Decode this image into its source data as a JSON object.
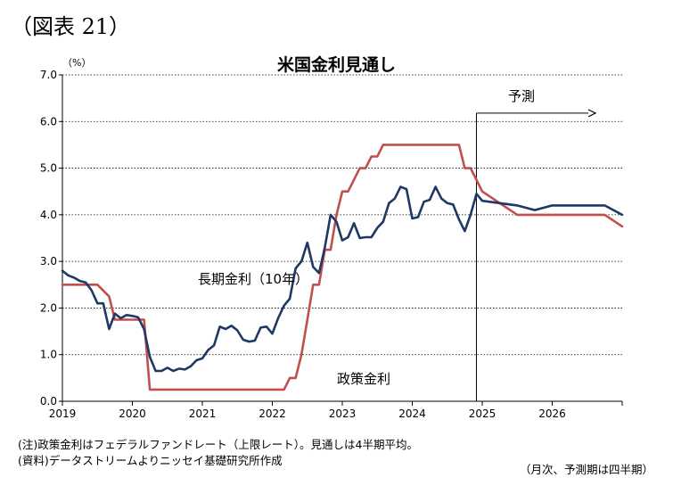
{
  "figure_label": "（図表 21）",
  "chart_data": {
    "type": "line",
    "title": "米国金利見通し",
    "ylabel": "（%）",
    "ylim": [
      0,
      7
    ],
    "yticks": [
      "0.0",
      "1.0",
      "2.0",
      "3.0",
      "4.0",
      "5.0",
      "6.0",
      "7.0"
    ],
    "xlim": [
      2019,
      2027
    ],
    "xticks": [
      "2019",
      "2020",
      "2021",
      "2022",
      "2023",
      "2024",
      "2025",
      "2026"
    ],
    "grid": true,
    "forecast_start": 2024.917,
    "forecast_label": "予測",
    "series": [
      {
        "name": "長期金利（10年）",
        "color": "#1f3864",
        "points": [
          [
            2019.0,
            2.8
          ],
          [
            2019.083,
            2.7
          ],
          [
            2019.167,
            2.65
          ],
          [
            2019.25,
            2.58
          ],
          [
            2019.333,
            2.55
          ],
          [
            2019.417,
            2.38
          ],
          [
            2019.5,
            2.1
          ],
          [
            2019.583,
            2.1
          ],
          [
            2019.667,
            1.55
          ],
          [
            2019.75,
            1.88
          ],
          [
            2019.833,
            1.78
          ],
          [
            2019.917,
            1.85
          ],
          [
            2020.0,
            1.83
          ],
          [
            2020.083,
            1.8
          ],
          [
            2020.167,
            1.55
          ],
          [
            2020.25,
            0.95
          ],
          [
            2020.333,
            0.65
          ],
          [
            2020.417,
            0.65
          ],
          [
            2020.5,
            0.72
          ],
          [
            2020.583,
            0.65
          ],
          [
            2020.667,
            0.7
          ],
          [
            2020.75,
            0.68
          ],
          [
            2020.833,
            0.75
          ],
          [
            2020.917,
            0.88
          ],
          [
            2021.0,
            0.92
          ],
          [
            2021.083,
            1.1
          ],
          [
            2021.167,
            1.2
          ],
          [
            2021.25,
            1.6
          ],
          [
            2021.333,
            1.55
          ],
          [
            2021.417,
            1.62
          ],
          [
            2021.5,
            1.52
          ],
          [
            2021.583,
            1.32
          ],
          [
            2021.667,
            1.28
          ],
          [
            2021.75,
            1.3
          ],
          [
            2021.833,
            1.58
          ],
          [
            2021.917,
            1.6
          ],
          [
            2022.0,
            1.45
          ],
          [
            2022.083,
            1.78
          ],
          [
            2022.167,
            2.05
          ],
          [
            2022.25,
            2.2
          ],
          [
            2022.333,
            2.85
          ],
          [
            2022.417,
            3.0
          ],
          [
            2022.5,
            3.4
          ],
          [
            2022.583,
            2.88
          ],
          [
            2022.667,
            2.75
          ],
          [
            2022.75,
            3.3
          ],
          [
            2022.833,
            4.0
          ],
          [
            2022.917,
            3.85
          ],
          [
            2023.0,
            3.45
          ],
          [
            2023.083,
            3.52
          ],
          [
            2023.167,
            3.82
          ],
          [
            2023.25,
            3.5
          ],
          [
            2023.333,
            3.52
          ],
          [
            2023.417,
            3.52
          ],
          [
            2023.5,
            3.72
          ],
          [
            2023.583,
            3.85
          ],
          [
            2023.667,
            4.25
          ],
          [
            2023.75,
            4.35
          ],
          [
            2023.833,
            4.6
          ],
          [
            2023.917,
            4.55
          ],
          [
            2024.0,
            3.92
          ],
          [
            2024.083,
            3.95
          ],
          [
            2024.167,
            4.28
          ],
          [
            2024.25,
            4.32
          ],
          [
            2024.333,
            4.6
          ],
          [
            2024.417,
            4.35
          ],
          [
            2024.5,
            4.25
          ],
          [
            2024.583,
            4.22
          ],
          [
            2024.667,
            3.9
          ],
          [
            2024.75,
            3.65
          ],
          [
            2024.833,
            4.0
          ],
          [
            2024.917,
            4.45
          ],
          [
            2025.0,
            4.3
          ],
          [
            2025.5,
            4.2
          ],
          [
            2025.75,
            4.1
          ],
          [
            2026.0,
            4.2
          ],
          [
            2026.5,
            4.2
          ],
          [
            2026.75,
            4.2
          ],
          [
            2027.0,
            4.0
          ]
        ]
      },
      {
        "name": "政策金利",
        "color": "#c0504d",
        "points": [
          [
            2019.0,
            2.5
          ],
          [
            2019.5,
            2.5
          ],
          [
            2019.667,
            2.25
          ],
          [
            2019.75,
            1.75
          ],
          [
            2020.0,
            1.75
          ],
          [
            2020.083,
            1.75
          ],
          [
            2020.167,
            1.75
          ],
          [
            2020.25,
            0.25
          ],
          [
            2021.0,
            0.25
          ],
          [
            2022.0,
            0.25
          ],
          [
            2022.167,
            0.25
          ],
          [
            2022.25,
            0.5
          ],
          [
            2022.333,
            0.5
          ],
          [
            2022.417,
            1.0
          ],
          [
            2022.5,
            1.75
          ],
          [
            2022.583,
            2.5
          ],
          [
            2022.667,
            2.5
          ],
          [
            2022.75,
            3.25
          ],
          [
            2022.833,
            3.25
          ],
          [
            2022.917,
            4.0
          ],
          [
            2023.0,
            4.5
          ],
          [
            2023.083,
            4.5
          ],
          [
            2023.167,
            4.75
          ],
          [
            2023.25,
            5.0
          ],
          [
            2023.333,
            5.0
          ],
          [
            2023.417,
            5.25
          ],
          [
            2023.5,
            5.25
          ],
          [
            2023.583,
            5.5
          ],
          [
            2024.0,
            5.5
          ],
          [
            2024.5,
            5.5
          ],
          [
            2024.583,
            5.5
          ],
          [
            2024.667,
            5.5
          ],
          [
            2024.75,
            5.0
          ],
          [
            2024.833,
            5.0
          ],
          [
            2024.917,
            4.75
          ],
          [
            2025.0,
            4.5
          ],
          [
            2025.25,
            4.25
          ],
          [
            2025.5,
            4.0
          ],
          [
            2025.75,
            4.0
          ],
          [
            2026.0,
            4.0
          ],
          [
            2026.5,
            4.0
          ],
          [
            2026.75,
            4.0
          ],
          [
            2027.0,
            3.75
          ]
        ]
      }
    ]
  },
  "labels": {
    "long_rate": "長期金利（10年）",
    "policy_rate": "政策金利"
  },
  "notes": {
    "note1": "(注)政策金利はフェデラルファンドレート（上限レート）。見通しは4半期平均。",
    "source": "(資料)データストリームよりニッセイ基礎研究所作成",
    "frequency": "（月次、予測期は四半期）"
  }
}
